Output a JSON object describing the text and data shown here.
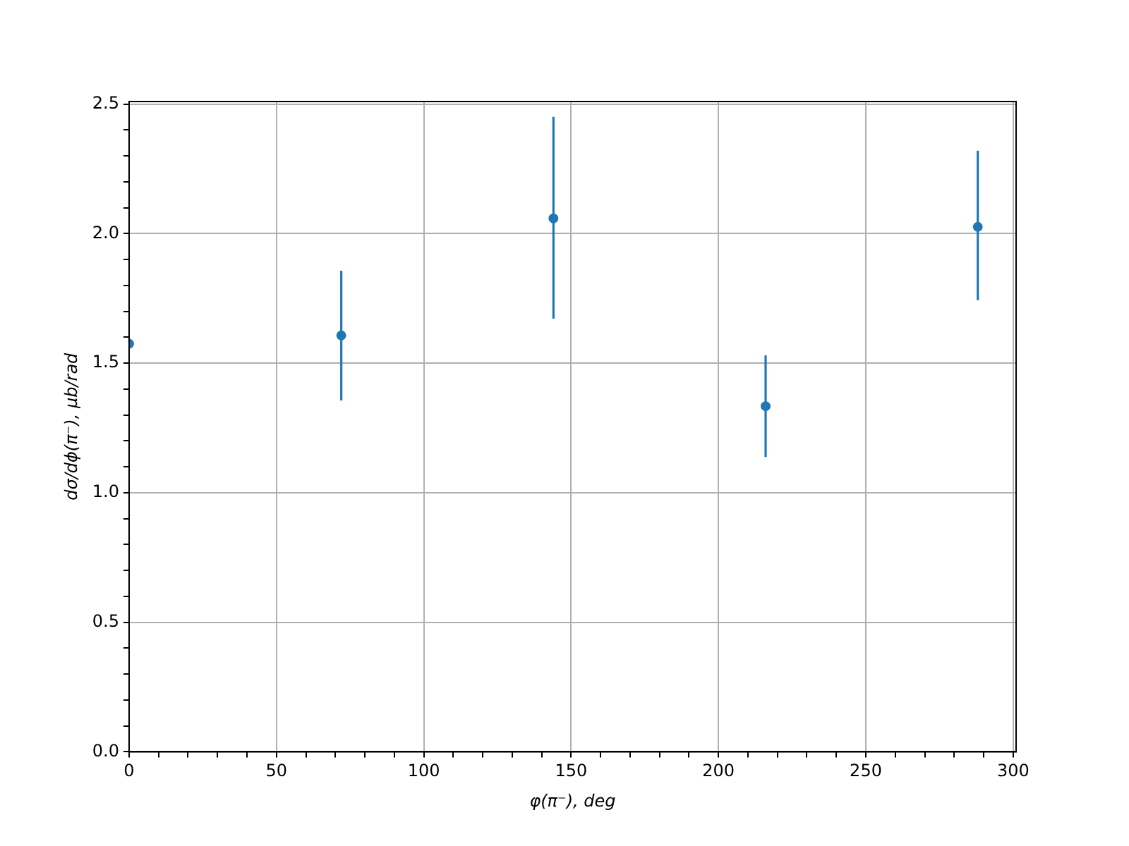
{
  "chart_data": {
    "type": "scatter",
    "xlabel": "φ(π⁻), deg",
    "ylabel": "dσ/dϕ(π⁻), μb/rad",
    "x": [
      0,
      72,
      144,
      216,
      288
    ],
    "values": [
      1.575,
      1.607,
      2.059,
      1.334,
      2.026
    ],
    "errors": [
      null,
      [
        1.356,
        1.857
      ],
      [
        1.672,
        2.451
      ],
      [
        1.138,
        1.53
      ],
      [
        1.743,
        2.32
      ]
    ],
    "color": "#1f77b4",
    "marker": "circle",
    "grid": true,
    "xlim": [
      0,
      301
    ],
    "xticks": [
      0,
      {
        "value": 10,
        "label": null
      },
      {
        "value": 20,
        "label": null
      },
      {
        "value": 30,
        "label": null
      },
      {
        "value": 40,
        "label": null
      },
      50,
      {
        "value": 60,
        "label": null
      },
      {
        "value": 70,
        "label": null
      },
      {
        "value": 80,
        "label": null
      },
      {
        "value": 90,
        "label": null
      },
      100,
      {
        "value": 110,
        "label": null
      },
      {
        "value": 120,
        "label": null
      },
      {
        "value": 130,
        "label": null
      },
      {
        "value": 140,
        "label": null
      },
      150,
      {
        "value": 160,
        "label": null
      },
      {
        "value": 170,
        "label": null
      },
      {
        "value": 180,
        "label": null
      },
      {
        "value": 190,
        "label": null
      },
      200,
      {
        "value": 210,
        "label": null
      },
      {
        "value": 220,
        "label": null
      },
      {
        "value": 230,
        "label": null
      },
      {
        "value": 240,
        "label": null
      },
      250,
      {
        "value": 260,
        "label": null
      },
      {
        "value": 270,
        "label": null
      },
      {
        "value": 280,
        "label": null
      },
      {
        "value": 290,
        "label": null
      },
      300
    ],
    "ylim": [
      0,
      2.51
    ],
    "yticks": [
      {
        "value": 0,
        "label": "0.0"
      },
      {
        "value": 0.1,
        "label": null
      },
      {
        "value": 0.2,
        "label": null
      },
      {
        "value": 0.3,
        "label": null
      },
      {
        "value": 0.4,
        "label": null
      },
      {
        "value": 0.5,
        "label": "0.5"
      },
      {
        "value": 0.6,
        "label": null
      },
      {
        "value": 0.7,
        "label": null
      },
      {
        "value": 0.8,
        "label": null
      },
      {
        "value": 0.9,
        "label": null
      },
      {
        "value": 1,
        "label": "1.0"
      },
      {
        "value": 1.1,
        "label": null
      },
      {
        "value": 1.2,
        "label": null
      },
      {
        "value": 1.3,
        "label": null
      },
      {
        "value": 1.4,
        "label": null
      },
      {
        "value": 1.5,
        "label": "1.5"
      },
      {
        "value": 1.6,
        "label": null
      },
      {
        "value": 1.7,
        "label": null
      },
      {
        "value": 1.8,
        "label": null
      },
      {
        "value": 1.9,
        "label": null
      },
      {
        "value": 2,
        "label": "2.0"
      },
      {
        "value": 2.1,
        "label": null
      },
      {
        "value": 2.2,
        "label": null
      },
      {
        "value": 2.3,
        "label": null
      },
      {
        "value": 2.4,
        "label": null
      },
      {
        "value": 2.5,
        "label": "2.5"
      }
    ]
  }
}
